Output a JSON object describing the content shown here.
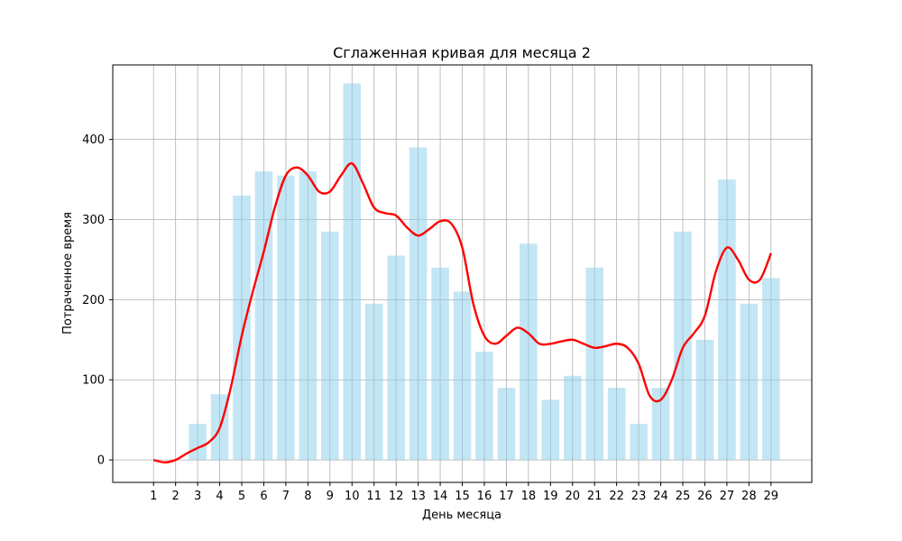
{
  "chart_data": {
    "type": "bar",
    "title": "Сглаженная кривая для месяца 2",
    "xlabel": "День месяца",
    "ylabel": "Потраченное время",
    "x": [
      1,
      2,
      3,
      4,
      5,
      6,
      7,
      8,
      9,
      10,
      11,
      12,
      13,
      14,
      15,
      16,
      17,
      18,
      19,
      20,
      21,
      22,
      23,
      24,
      25,
      26,
      27,
      28,
      29
    ],
    "x_ticks": [
      1,
      2,
      3,
      4,
      5,
      6,
      7,
      8,
      9,
      10,
      11,
      12,
      13,
      14,
      15,
      16,
      17,
      18,
      19,
      20,
      21,
      22,
      23,
      24,
      25,
      26,
      27,
      28,
      29
    ],
    "y_ticks": [
      0,
      100,
      200,
      300,
      400
    ],
    "xlim": [
      -0.85,
      30.85
    ],
    "ylim": [
      -28,
      493
    ],
    "grid": true,
    "bar_color": "#87CEEB",
    "bar_opacity": 0.5,
    "line_color": "#ff0000",
    "series": [
      {
        "type": "bar",
        "values": [
          0,
          0,
          45,
          82,
          330,
          360,
          355,
          360,
          285,
          470,
          195,
          255,
          390,
          240,
          210,
          135,
          90,
          270,
          75,
          105,
          240,
          90,
          45,
          90,
          285,
          150,
          350,
          195,
          227
        ]
      },
      {
        "type": "line",
        "x": [
          1,
          1.5,
          2,
          2.5,
          3,
          3.5,
          4,
          4.5,
          5,
          5.5,
          6,
          6.5,
          7,
          7.5,
          8,
          8.5,
          9,
          9.5,
          10,
          10.5,
          11,
          11.5,
          12,
          12.5,
          13,
          13.5,
          14,
          14.5,
          15,
          15.5,
          16,
          16.5,
          17,
          17.5,
          18,
          18.5,
          19,
          19.5,
          20,
          20.5,
          21,
          21.5,
          22,
          22.5,
          23,
          23.5,
          24,
          24.5,
          25,
          25.5,
          26,
          26.5,
          27,
          27.5,
          28,
          28.5,
          29
        ],
        "values": [
          0,
          -3,
          0,
          8,
          15,
          22,
          40,
          90,
          155,
          210,
          260,
          315,
          355,
          365,
          355,
          335,
          335,
          355,
          370,
          345,
          315,
          308,
          305,
          290,
          280,
          288,
          298,
          295,
          265,
          195,
          155,
          145,
          155,
          165,
          158,
          145,
          145,
          148,
          150,
          145,
          140,
          142,
          145,
          140,
          120,
          80,
          75,
          100,
          140,
          158,
          180,
          235,
          265,
          250,
          225,
          225,
          258
        ]
      }
    ]
  }
}
